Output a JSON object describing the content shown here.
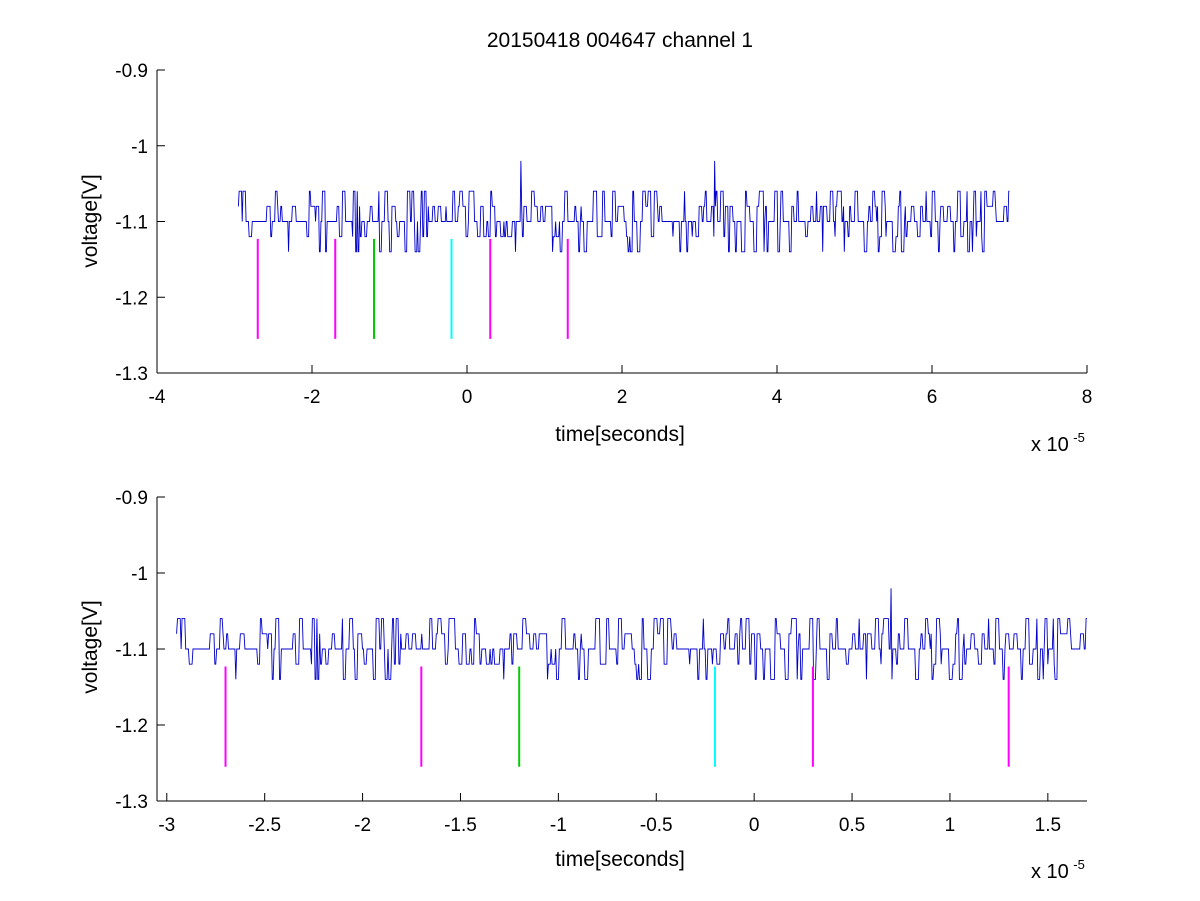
{
  "title": "20150418 004647 channel 1",
  "colors": {
    "signal": "#0000cc",
    "magenta": "#ff00ff",
    "green": "#00cc00",
    "cyan": "#00ffff"
  },
  "chart_data": [
    {
      "type": "line",
      "title": "20150418 004647 channel 1",
      "xlabel": "time[seconds]",
      "ylabel": "voltage[V]",
      "xlim": [
        -4e-05,
        8e-05
      ],
      "ylim": [
        -1.3,
        -0.9
      ],
      "xticks": [
        -4,
        -2,
        0,
        2,
        4,
        6,
        8
      ],
      "xtick_labels": [
        "-4",
        "-2",
        "0",
        "2",
        "4",
        "6",
        "8"
      ],
      "yticks": [
        -0.9,
        -1.0,
        -1.1,
        -1.2,
        -1.3
      ],
      "ytick_labels": [
        "-0.9",
        "-1",
        "-1.1",
        "-1.2",
        "-1.3"
      ],
      "x_multiplier_base": "x 10",
      "x_multiplier_exp": "-5",
      "grid": false,
      "series": [
        {
          "color": "#0000cc",
          "x_start": -2.95e-05,
          "x_end": 7e-05,
          "baseline": -1.1,
          "levels": [
            -1.14,
            -1.12,
            -1.1,
            -1.08,
            -1.06
          ],
          "spikes": [
            {
              "x": 7e-06,
              "y": -1.02
            },
            {
              "x": 3.2e-05,
              "y": -1.02
            }
          ]
        }
      ],
      "markers": [
        {
          "x": -2.7e-05,
          "y_top": -1.123,
          "y_bottom": -1.255,
          "color": "#ff00ff"
        },
        {
          "x": -1.7e-05,
          "y_top": -1.123,
          "y_bottom": -1.255,
          "color": "#ff00ff"
        },
        {
          "x": -1.2e-05,
          "y_top": -1.123,
          "y_bottom": -1.255,
          "color": "#00cc00"
        },
        {
          "x": -2e-06,
          "y_top": -1.123,
          "y_bottom": -1.255,
          "color": "#00ffff"
        },
        {
          "x": 3e-06,
          "y_top": -1.123,
          "y_bottom": -1.255,
          "color": "#ff00ff"
        },
        {
          "x": 1.3e-05,
          "y_top": -1.123,
          "y_bottom": -1.255,
          "color": "#ff00ff"
        }
      ]
    },
    {
      "type": "line",
      "title": "",
      "xlabel": "time[seconds]",
      "ylabel": "voltage[V]",
      "xlim": [
        -3.05e-05,
        1.7e-05
      ],
      "ylim": [
        -1.3,
        -0.9
      ],
      "xticks": [
        -3,
        -2.5,
        -2,
        -1.5,
        -1,
        -0.5,
        0,
        0.5,
        1,
        1.5
      ],
      "xtick_labels": [
        "-3",
        "-2.5",
        "-2",
        "-1.5",
        "-1",
        "-0.5",
        "0",
        "0.5",
        "1",
        "1.5"
      ],
      "yticks": [
        -0.9,
        -1.0,
        -1.1,
        -1.2,
        -1.3
      ],
      "ytick_labels": [
        "-0.9",
        "-1",
        "-1.1",
        "-1.2",
        "-1.3"
      ],
      "x_multiplier_base": "x 10",
      "x_multiplier_exp": "-5",
      "grid": false,
      "series": [
        {
          "color": "#0000cc",
          "x_start": -2.95e-05,
          "x_end": 1.7e-05,
          "baseline": -1.1,
          "levels": [
            -1.14,
            -1.12,
            -1.1,
            -1.08,
            -1.06
          ],
          "spikes": [
            {
              "x": 7e-06,
              "y": -1.02
            }
          ]
        }
      ],
      "markers": [
        {
          "x": -2.7e-05,
          "y_top": -1.123,
          "y_bottom": -1.255,
          "color": "#ff00ff"
        },
        {
          "x": -1.7e-05,
          "y_top": -1.123,
          "y_bottom": -1.255,
          "color": "#ff00ff"
        },
        {
          "x": -1.2e-05,
          "y_top": -1.123,
          "y_bottom": -1.255,
          "color": "#00cc00"
        },
        {
          "x": -2e-06,
          "y_top": -1.123,
          "y_bottom": -1.255,
          "color": "#00ffff"
        },
        {
          "x": 3e-06,
          "y_top": -1.123,
          "y_bottom": -1.255,
          "color": "#ff00ff"
        },
        {
          "x": 1.3e-05,
          "y_top": -1.123,
          "y_bottom": -1.255,
          "color": "#ff00ff"
        }
      ]
    }
  ]
}
